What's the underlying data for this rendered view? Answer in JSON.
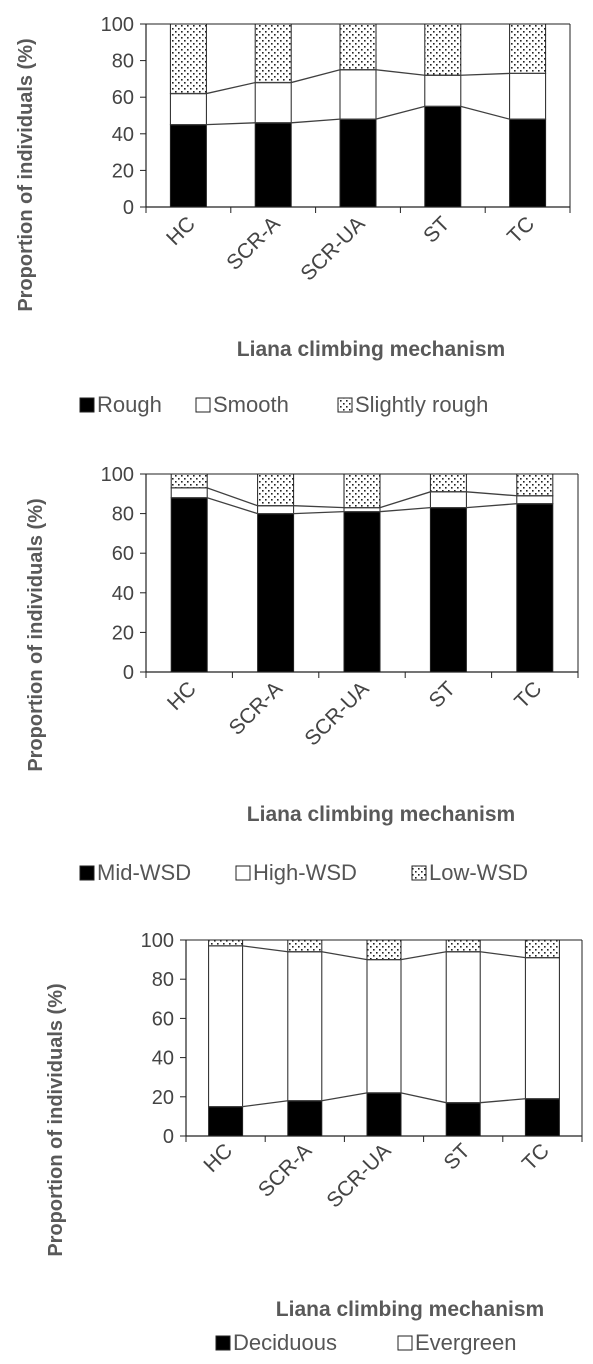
{
  "chart_data": [
    {
      "type": "bar",
      "stacked": true,
      "categories": [
        "HC",
        "SCR-A",
        "SCR-UA",
        "ST",
        "TC"
      ],
      "series": [
        {
          "name": "Rough",
          "values": [
            45,
            46,
            48,
            55,
            48
          ],
          "fill": "black"
        },
        {
          "name": "Smooth",
          "values": [
            17,
            22,
            27,
            17,
            25
          ],
          "fill": "white"
        },
        {
          "name": "Slightly rough",
          "values": [
            38,
            32,
            25,
            28,
            27
          ],
          "fill": "dots"
        }
      ],
      "xlabel": "Liana climbing mechanism",
      "ylabel": "Proportion of individuals (%)",
      "ylim": [
        0,
        100
      ],
      "yticks": [
        0,
        20,
        40,
        60,
        80,
        100
      ],
      "grid": false,
      "legend_position": "bottom"
    },
    {
      "type": "bar",
      "stacked": true,
      "categories": [
        "HC",
        "SCR-A",
        "SCR-UA",
        "ST",
        "TC"
      ],
      "series": [
        {
          "name": "Mid-WSD",
          "values": [
            88,
            80,
            81,
            83,
            85
          ],
          "fill": "black"
        },
        {
          "name": "High-WSD",
          "values": [
            5,
            4,
            2,
            8,
            4
          ],
          "fill": "white"
        },
        {
          "name": "Low-WSD",
          "values": [
            7,
            16,
            17,
            9,
            11
          ],
          "fill": "dots"
        }
      ],
      "xlabel": "Liana climbing mechanism",
      "ylabel": "Proportion of individuals (%)",
      "ylim": [
        0,
        100
      ],
      "yticks": [
        0,
        20,
        40,
        60,
        80,
        100
      ],
      "grid": false,
      "legend_position": "bottom"
    },
    {
      "type": "bar",
      "stacked": true,
      "categories": [
        "HC",
        "SCR-A",
        "SCR-UA",
        "ST",
        "TC"
      ],
      "series": [
        {
          "name": "Deciduous",
          "values": [
            15,
            18,
            22,
            17,
            19
          ],
          "fill": "black"
        },
        {
          "name": "Evergreen",
          "values": [
            82,
            76,
            68,
            77,
            72
          ],
          "fill": "white"
        },
        {
          "name": "",
          "values": [
            3,
            6,
            10,
            6,
            9
          ],
          "fill": "dots"
        }
      ],
      "xlabel": "Liana climbing mechanism",
      "ylabel": "Proportion of individuals (%)",
      "ylim": [
        0,
        100
      ],
      "yticks": [
        0,
        20,
        40,
        60,
        80,
        100
      ],
      "grid": false,
      "legend_position": "bottom"
    }
  ]
}
